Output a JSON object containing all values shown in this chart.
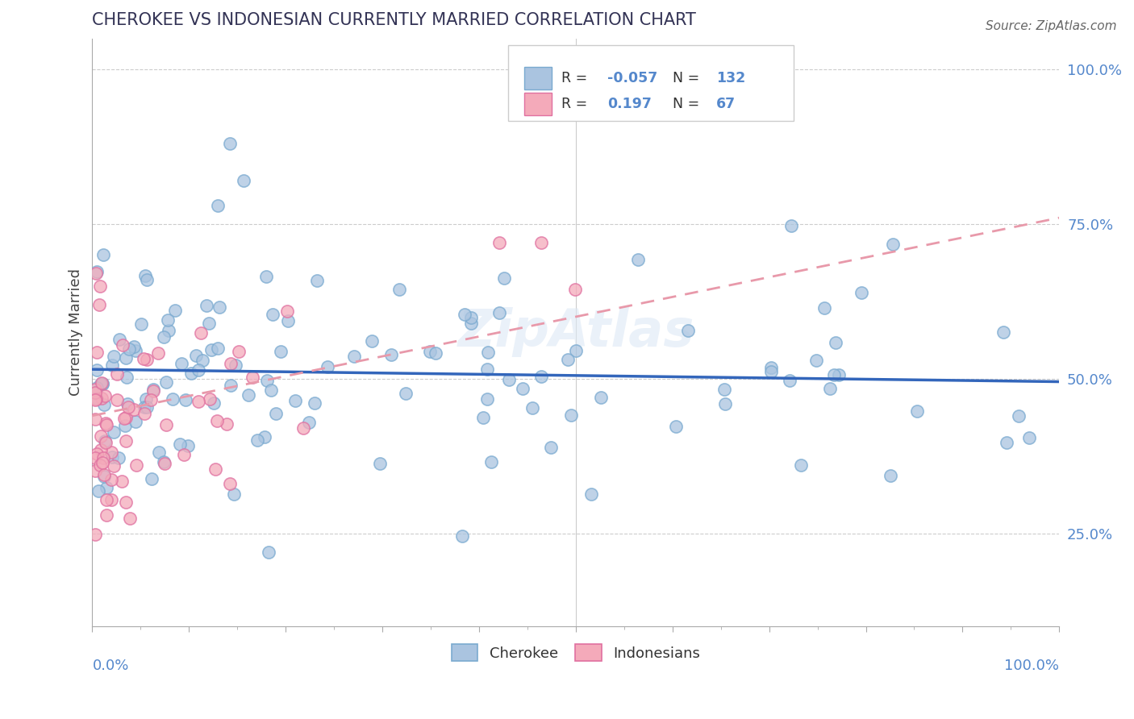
{
  "title": "CHEROKEE VS INDONESIAN CURRENTLY MARRIED CORRELATION CHART",
  "source": "Source: ZipAtlas.com",
  "ylabel": "Currently Married",
  "xlim": [
    0.0,
    1.0
  ],
  "ylim": [
    0.1,
    1.05
  ],
  "cherokee_color": "#aac4e0",
  "cherokee_edge_color": "#7aaad0",
  "indonesian_color": "#f4aaba",
  "indonesian_edge_color": "#e070a0",
  "cherokee_line_color": "#3366bb",
  "indonesian_line_color": "#e899aa",
  "R_cherokee": -0.057,
  "N_cherokee": 132,
  "R_indonesian": 0.197,
  "N_indonesian": 67,
  "background_color": "#ffffff",
  "grid_color": "#cccccc",
  "tick_color": "#aaaaaa",
  "label_color": "#5588cc",
  "text_color": "#444455",
  "title_color": "#333355",
  "cherokee_line_intercept": 0.515,
  "cherokee_line_slope": -0.02,
  "indonesian_line_intercept": 0.44,
  "indonesian_line_slope": 0.32
}
